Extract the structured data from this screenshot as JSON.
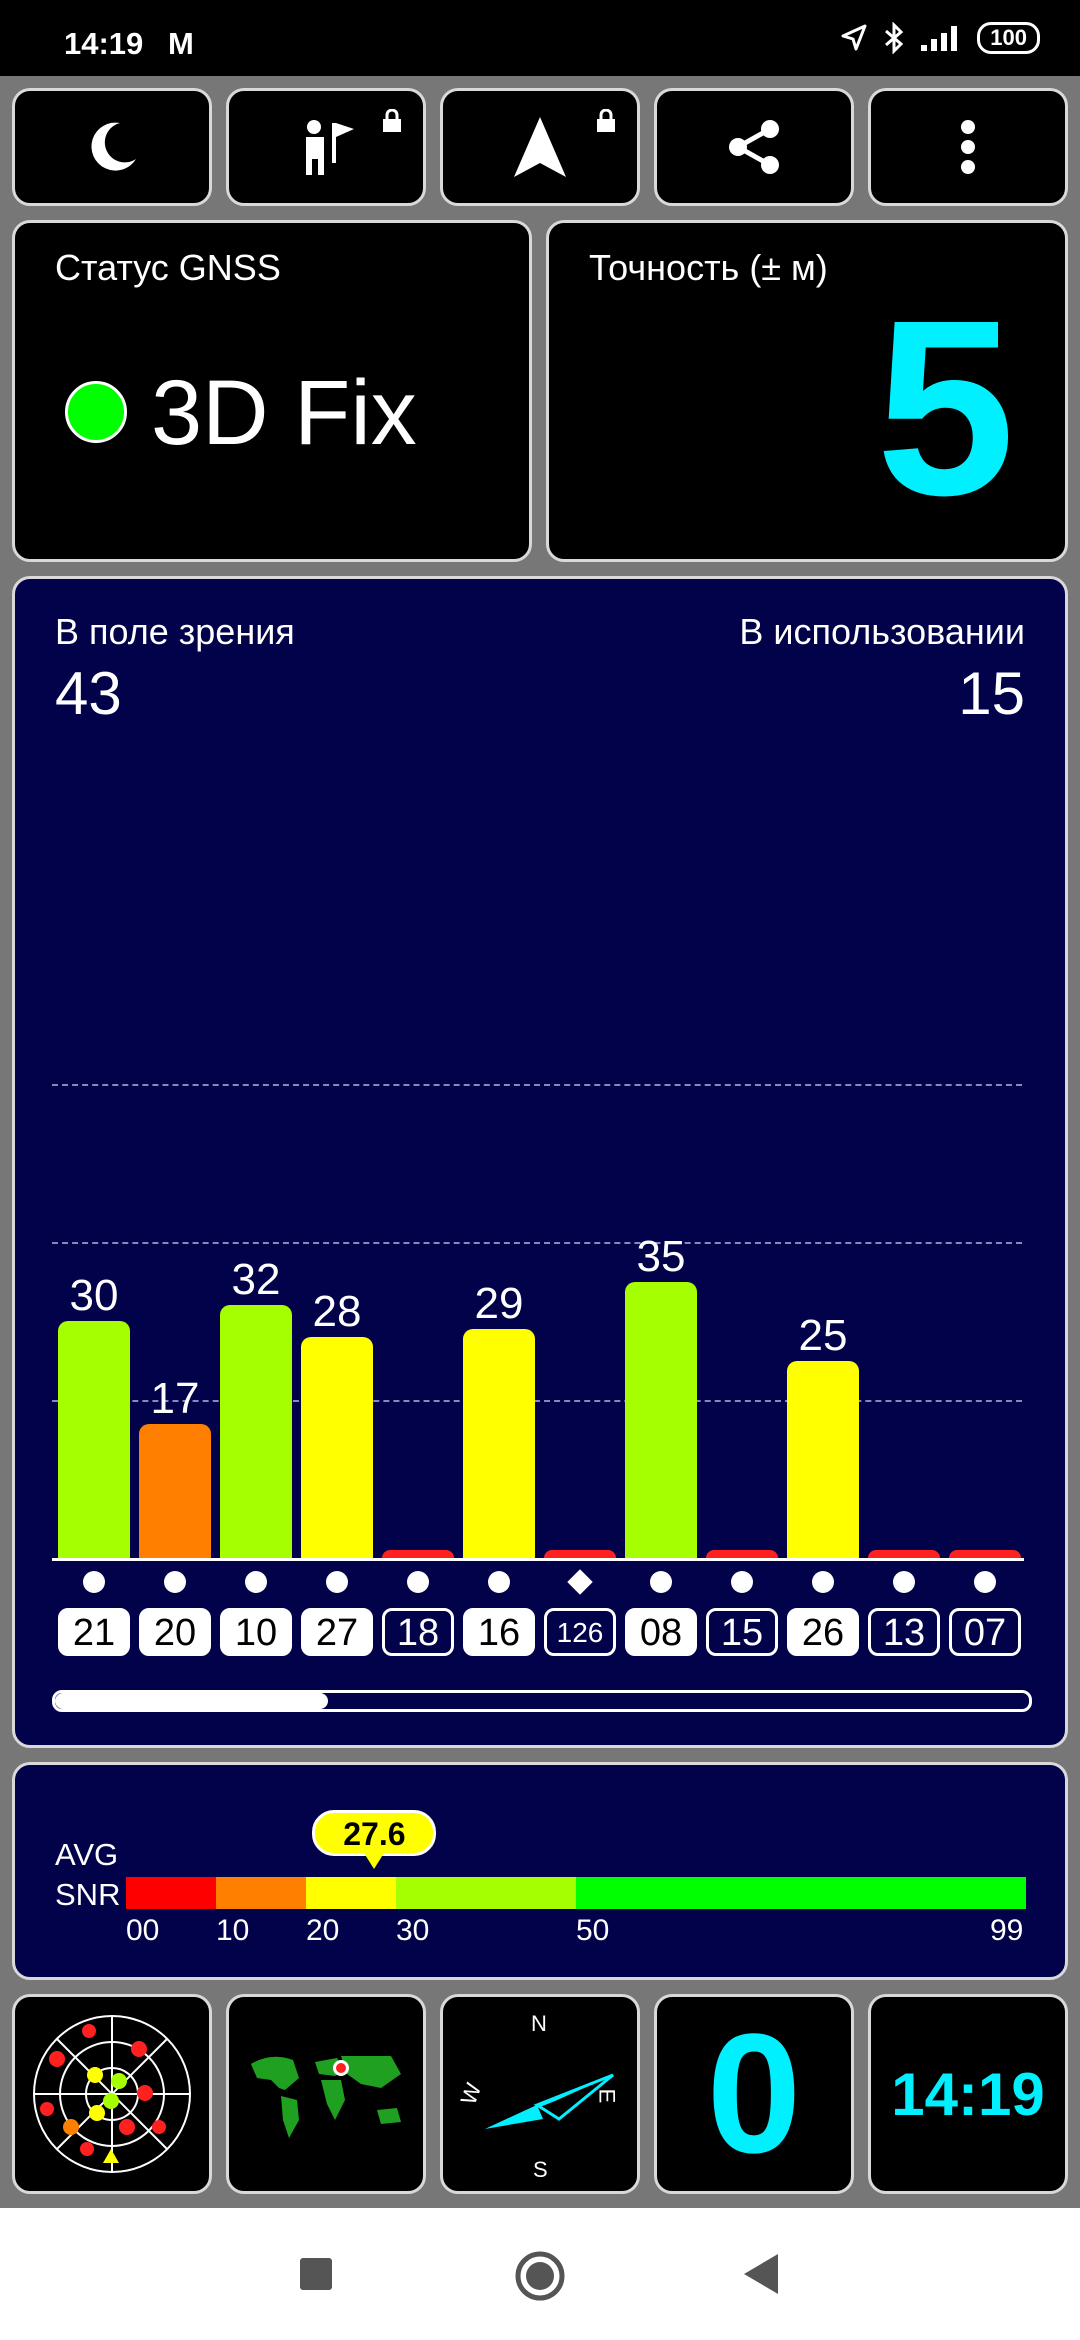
{
  "status_bar": {
    "time": "14:19",
    "carrier_icon": "M",
    "icons": [
      "location-arrow-icon",
      "bluetooth-icon",
      "signal-icon"
    ],
    "battery": "100"
  },
  "toolbar": {
    "buttons": [
      "moon-icon",
      "person-flag-icon",
      "navigation-arrow-icon",
      "share-icon",
      "more-vertical-icon"
    ]
  },
  "gnss": {
    "label": "Статус GNSS",
    "status": "3D Fix",
    "status_color": "#00ff00"
  },
  "accuracy": {
    "label": "Точность (± м)",
    "value": "5",
    "color": "#00f0ff"
  },
  "satellites": {
    "in_view_label": "В поле зрения",
    "in_view": "43",
    "in_use_label": "В использовании",
    "in_use": "15"
  },
  "chart_data": {
    "type": "bar",
    "categories": [
      "21",
      "20",
      "10",
      "27",
      "18",
      "16",
      "126",
      "08",
      "15",
      "26",
      "13",
      "07"
    ],
    "values": [
      30,
      17,
      32,
      28,
      0,
      29,
      0,
      35,
      0,
      25,
      0,
      0
    ],
    "labels": [
      "30",
      "17",
      "32",
      "28",
      "",
      "29",
      "",
      "35",
      "",
      "25",
      "",
      ""
    ],
    "colors": [
      "#a6ff00",
      "#ff8000",
      "#a6ff00",
      "#ffff00",
      "#ff2020",
      "#ffff00",
      "#ff2020",
      "#a6ff00",
      "#ff2020",
      "#ffff00",
      "#ff2020",
      "#ff2020"
    ],
    "markers": [
      "circle",
      "circle",
      "circle",
      "circle",
      "circle",
      "circle",
      "diamond",
      "circle",
      "circle",
      "circle",
      "circle",
      "circle"
    ],
    "in_use": [
      true,
      true,
      true,
      true,
      false,
      true,
      false,
      true,
      false,
      true,
      false,
      false
    ],
    "ylim": [
      0,
      60
    ],
    "grid_values": [
      20,
      40,
      60
    ],
    "scroll_fraction": 0.28
  },
  "snr": {
    "avg_label": "AVG",
    "snr_label": "SNR",
    "avg_value": "27.6",
    "avg_number": 27.6,
    "scale_min": 0,
    "scale_max": 99,
    "segments": [
      {
        "from": 0,
        "to": 10,
        "color": "#ff0000"
      },
      {
        "from": 10,
        "to": 20,
        "color": "#ff8000"
      },
      {
        "from": 20,
        "to": 30,
        "color": "#ffff00"
      },
      {
        "from": 30,
        "to": 50,
        "color": "#a6ff00"
      },
      {
        "from": 50,
        "to": 99,
        "color": "#00ff00"
      }
    ],
    "ticks": [
      "00",
      "10",
      "20",
      "30",
      "50",
      "99"
    ]
  },
  "bottom_tiles": {
    "compass": {
      "n": "N",
      "e": "E",
      "s": "S",
      "w": "W"
    },
    "speed": "0",
    "clock": "14:19"
  }
}
